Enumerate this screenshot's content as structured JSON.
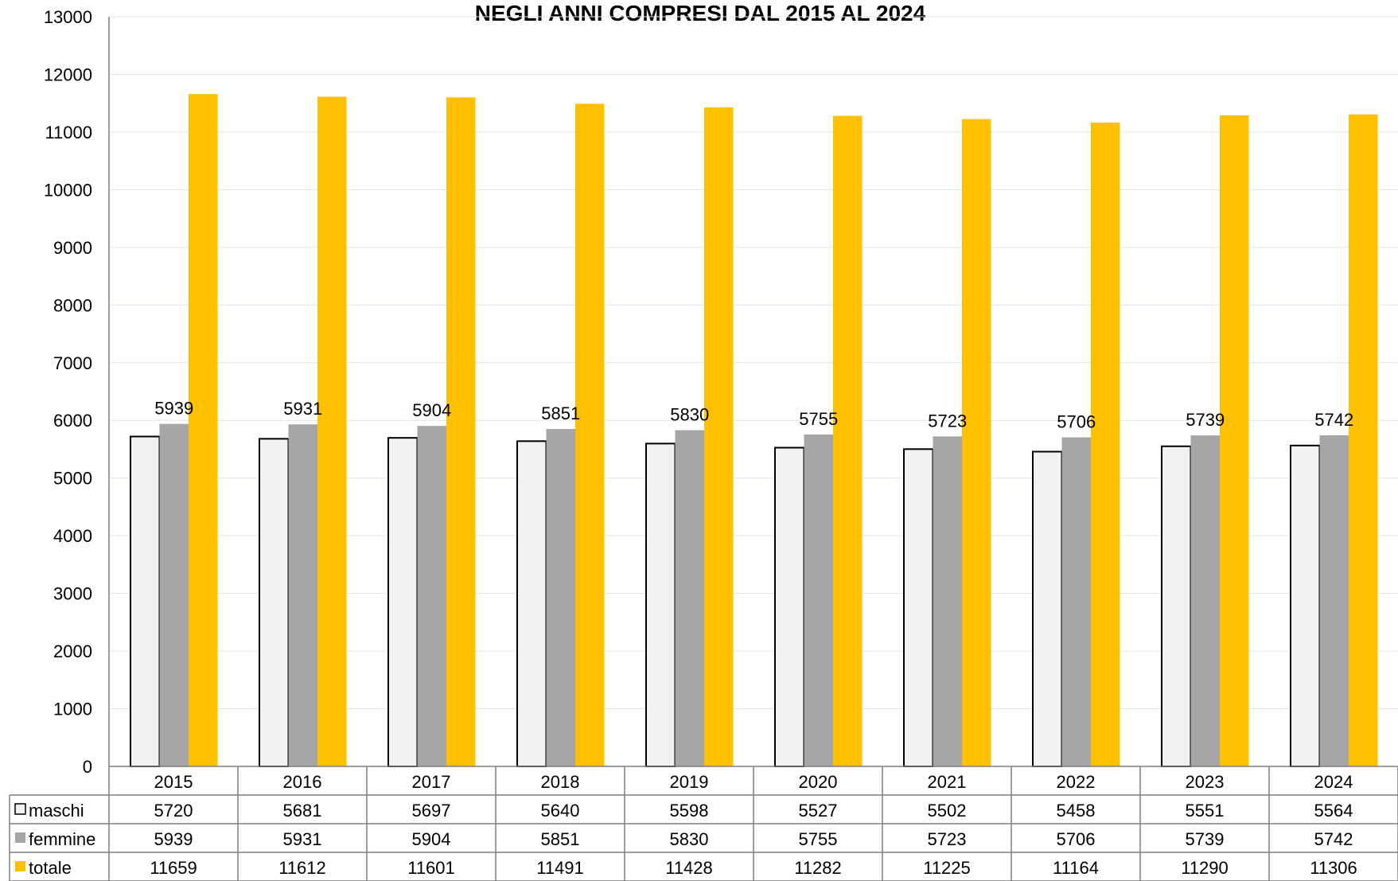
{
  "chart_data": {
    "type": "bar",
    "title": "NEGLI ANNI COMPRESI DAL 2015 AL 2024",
    "categories": [
      "2015",
      "2016",
      "2017",
      "2018",
      "2019",
      "2020",
      "2021",
      "2022",
      "2023",
      "2024"
    ],
    "series": [
      {
        "name": "maschi",
        "values": [
          5720,
          5681,
          5697,
          5640,
          5598,
          5527,
          5502,
          5458,
          5551,
          5564
        ],
        "color": "#f2f2f2"
      },
      {
        "name": "femmine",
        "values": [
          5939,
          5931,
          5904,
          5851,
          5830,
          5755,
          5723,
          5706,
          5739,
          5742
        ],
        "color": "#a6a6a6"
      },
      {
        "name": "totale",
        "values": [
          11659,
          11612,
          11601,
          11491,
          11428,
          11282,
          11225,
          11164,
          11290,
          11306
        ],
        "color": "#ffc000"
      }
    ],
    "ylim": [
      0,
      13000
    ],
    "yticks": [
      0,
      1000,
      2000,
      3000,
      4000,
      5000,
      6000,
      7000,
      8000,
      9000,
      10000,
      11000,
      12000,
      13000
    ],
    "data_labels_series": "femmine",
    "grid": true,
    "legend": "data-table-below"
  }
}
